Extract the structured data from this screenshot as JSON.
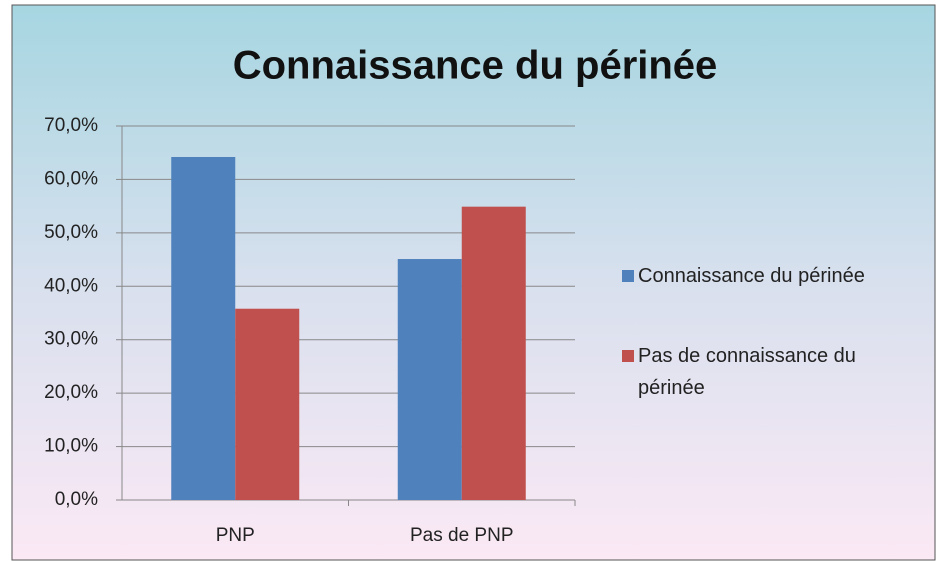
{
  "chart_data": {
    "type": "bar",
    "title": "Connaissance du périnée",
    "categories": [
      "PNP",
      "Pas de PNP"
    ],
    "series": [
      {
        "name": "Connaissance du périnée",
        "color": "#4f81bd",
        "values": [
          64.2,
          45.1
        ]
      },
      {
        "name": "Pas de connaissance du périnée",
        "color": "#c0504d",
        "values": [
          35.8,
          54.9
        ]
      }
    ],
    "ylim": [
      0,
      70
    ],
    "yticks": [
      {
        "value": 0,
        "label": "0,0%"
      },
      {
        "value": 10,
        "label": "10,0%"
      },
      {
        "value": 20,
        "label": "20,0%"
      },
      {
        "value": 30,
        "label": "30,0%"
      },
      {
        "value": 40,
        "label": "40,0%"
      },
      {
        "value": 50,
        "label": "50,0%"
      },
      {
        "value": 60,
        "label": "60,0%"
      },
      {
        "value": 70,
        "label": "70,0%"
      }
    ],
    "grid": true,
    "legend": "right"
  }
}
